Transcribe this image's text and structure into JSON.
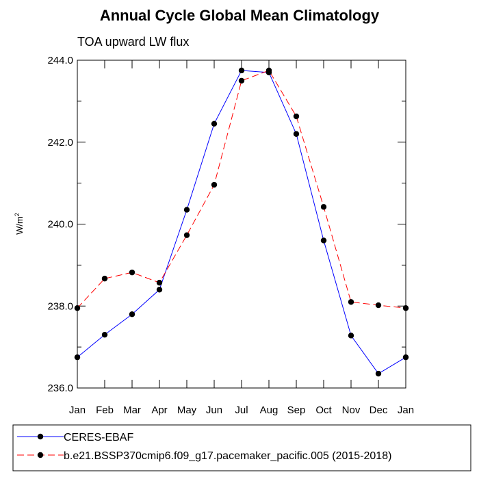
{
  "chart_data": {
    "type": "line",
    "title": "Annual Cycle Global Mean Climatology",
    "subtitle": "TOA upward LW flux",
    "ylabel_base": "W/m",
    "ylabel_sup": "2",
    "categories": [
      "Jan",
      "Feb",
      "Mar",
      "Apr",
      "May",
      "Jun",
      "Jul",
      "Aug",
      "Sep",
      "Oct",
      "Nov",
      "Dec",
      "Jan"
    ],
    "ylim": [
      236.0,
      244.0
    ],
    "yticks": [
      "236.0",
      "238.0",
      "240.0",
      "242.0",
      "244.0"
    ],
    "ytick_values": [
      236.0,
      238.0,
      240.0,
      242.0,
      244.0
    ],
    "grid": false,
    "legend_position": "bottom",
    "series": [
      {
        "name": "CERES-EBAF",
        "color": "#0000ff",
        "style": "solid",
        "values": [
          236.75,
          237.3,
          237.8,
          238.4,
          240.35,
          242.45,
          243.75,
          243.7,
          242.2,
          239.6,
          237.28,
          236.35,
          236.75
        ]
      },
      {
        "name": "b.e21.BSSP370cmip6.f09_g17.pacemaker_pacific.005 (2015-2018)",
        "color": "#ff0000",
        "style": "dashed",
        "values": [
          237.95,
          238.67,
          238.82,
          238.57,
          239.73,
          240.96,
          243.5,
          243.75,
          242.63,
          240.42,
          238.1,
          238.02,
          237.95
        ]
      }
    ]
  }
}
